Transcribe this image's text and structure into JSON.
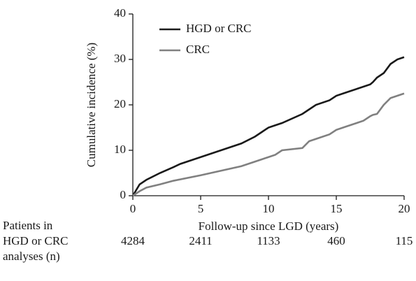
{
  "chart_data": {
    "type": "line",
    "y_label": "Cumulative incidence (%)",
    "x_label": "Follow-up since LGD (years)",
    "x": [
      0,
      0.5,
      1,
      2,
      3,
      3.5,
      5,
      6.5,
      8,
      9,
      9.5,
      10,
      10.5,
      11,
      12.5,
      13,
      13.5,
      14.5,
      15,
      15.5,
      16,
      16.5,
      17,
      17.5,
      17.7,
      18,
      18.5,
      19,
      19.5,
      20
    ],
    "series": [
      {
        "name": "HGD or CRC",
        "color": "#1a1a1a",
        "values": [
          0,
          2.5,
          3.5,
          5,
          6.3,
          7,
          8.5,
          10,
          11.5,
          13,
          14,
          15,
          15.5,
          16,
          18,
          19,
          20,
          21,
          22,
          22.5,
          23,
          23.5,
          24,
          24.5,
          25,
          26,
          27,
          29,
          30,
          30.5
        ]
      },
      {
        "name": "CRC",
        "color": "#808080",
        "values": [
          0,
          1,
          1.8,
          2.5,
          3.3,
          3.6,
          4.5,
          5.5,
          6.5,
          7.5,
          8,
          8.5,
          9,
          10,
          10.5,
          12,
          12.5,
          13.5,
          14.5,
          15,
          15.5,
          16,
          16.5,
          17.5,
          17.8,
          18,
          20,
          21.5,
          22,
          22.5
        ]
      }
    ],
    "xlim": [
      0,
      20
    ],
    "xticks": [
      0,
      5,
      10,
      15,
      20
    ],
    "ylim": [
      0,
      40
    ],
    "yticks": [
      0,
      10,
      20,
      30,
      40
    ],
    "grid": false,
    "legend_position": "upper-left",
    "risk_table": {
      "label": [
        "Patients in",
        "HGD or CRC",
        "analyses (n)"
      ],
      "values": [
        4284,
        2411,
        1133,
        460,
        115
      ]
    }
  }
}
